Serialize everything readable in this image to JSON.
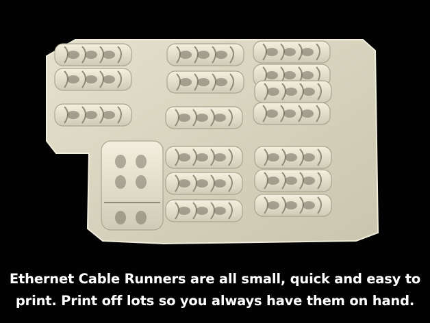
{
  "photo": {
    "subject": "3D printed ethernet cable runners on a print raft",
    "colors": {
      "background": "#020202",
      "plastic": "#ece9d6",
      "plastic_shadow": "#bdb9a4",
      "raft": "#d9d6c2"
    }
  },
  "caption": {
    "line1": "Ethernet Cable Runners are all small, quick and easy to",
    "line2": "print. Print off lots so you always have them on hand."
  }
}
